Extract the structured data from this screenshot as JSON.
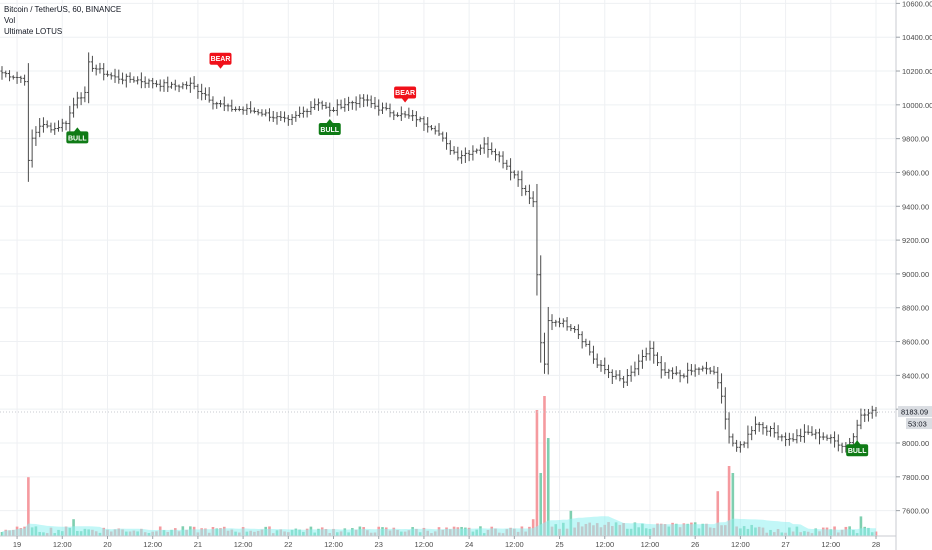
{
  "header": {
    "symbol_line": "Bitcoin / TetherUS, 60, BINANCE",
    "volume_label": "Vol",
    "indicator_label": "Ultimate LOTUS"
  },
  "price_axis": {
    "last_price": "8183.09",
    "countdown": "53:03"
  },
  "colors": {
    "bar": "#4a4a4a",
    "bull": "#0f7b16",
    "bear": "#f0101a",
    "vol_up": "#7fcfb0",
    "vol_down": "#f59a9f",
    "vol_ma": "#8ff0f0",
    "grid": "#eef0f3",
    "axis_text": "#4a4a4a"
  },
  "chart_data": {
    "type": "ohlc",
    "yticks": [
      7600,
      7800,
      8000,
      8200,
      8400,
      8600,
      8800,
      9000,
      9200,
      9400,
      9600,
      9800,
      10000,
      10200,
      10400,
      10600
    ],
    "ylim": [
      7450,
      10620
    ],
    "x_tick_labels": [
      {
        "label": "19",
        "t": 4
      },
      {
        "label": "12:00",
        "t": 16
      },
      {
        "label": "20",
        "t": 28
      },
      {
        "label": "12:00",
        "t": 40
      },
      {
        "label": "21",
        "t": 52
      },
      {
        "label": "12:00",
        "t": 64
      },
      {
        "label": "22",
        "t": 76
      },
      {
        "label": "12:00",
        "t": 88
      },
      {
        "label": "23",
        "t": 100
      },
      {
        "label": "12:00",
        "t": 112
      },
      {
        "label": "24",
        "t": 124
      },
      {
        "label": "12:00",
        "t": 136
      },
      {
        "label": "25",
        "t": 148
      },
      {
        "label": "12:00",
        "t": 160
      },
      {
        "label": "12:00",
        "t": 172
      },
      {
        "label": "26",
        "t": 184
      },
      {
        "label": "12:00",
        "t": 196
      },
      {
        "label": "27",
        "t": 208
      },
      {
        "label": "12:00",
        "t": 220
      },
      {
        "label": "28",
        "t": 232
      }
    ],
    "anchors": [
      [
        0,
        10190
      ],
      [
        3,
        10170
      ],
      [
        6,
        10150
      ],
      [
        7,
        9660
      ],
      [
        8,
        9800
      ],
      [
        10,
        9880
      ],
      [
        14,
        9860
      ],
      [
        17,
        9900
      ],
      [
        20,
        10050
      ],
      [
        22,
        10060
      ],
      [
        23,
        10240
      ],
      [
        26,
        10200
      ],
      [
        30,
        10160
      ],
      [
        35,
        10150
      ],
      [
        40,
        10130
      ],
      [
        45,
        10110
      ],
      [
        50,
        10120
      ],
      [
        54,
        10060
      ],
      [
        56,
        10020
      ],
      [
        60,
        9980
      ],
      [
        64,
        9970
      ],
      [
        68,
        9960
      ],
      [
        72,
        9930
      ],
      [
        76,
        9900
      ],
      [
        80,
        9960
      ],
      [
        84,
        10020
      ],
      [
        87,
        9960
      ],
      [
        90,
        10000
      ],
      [
        96,
        10030
      ],
      [
        100,
        9980
      ],
      [
        103,
        9960
      ],
      [
        106,
        9940
      ],
      [
        110,
        9920
      ],
      [
        115,
        9860
      ],
      [
        118,
        9760
      ],
      [
        121,
        9700
      ],
      [
        124,
        9720
      ],
      [
        128,
        9760
      ],
      [
        131,
        9720
      ],
      [
        134,
        9640
      ],
      [
        137,
        9560
      ],
      [
        139,
        9480
      ],
      [
        141,
        9420
      ],
      [
        143,
        8580
      ],
      [
        144,
        8460
      ],
      [
        145,
        8720
      ],
      [
        148,
        8720
      ],
      [
        152,
        8680
      ],
      [
        155,
        8580
      ],
      [
        158,
        8460
      ],
      [
        161,
        8420
      ],
      [
        165,
        8360
      ],
      [
        168,
        8440
      ],
      [
        172,
        8560
      ],
      [
        175,
        8420
      ],
      [
        180,
        8400
      ],
      [
        185,
        8440
      ],
      [
        189,
        8420
      ],
      [
        191,
        8270
      ],
      [
        193,
        8040
      ],
      [
        195,
        7960
      ],
      [
        197,
        8010
      ],
      [
        200,
        8120
      ],
      [
        205,
        8060
      ],
      [
        209,
        8020
      ],
      [
        214,
        8060
      ],
      [
        218,
        8040
      ],
      [
        222,
        8000
      ],
      [
        224,
        7980
      ],
      [
        226,
        8040
      ],
      [
        228,
        8170
      ],
      [
        230,
        8190
      ],
      [
        232,
        8183
      ]
    ],
    "volume_spikes": [
      {
        "t": 7,
        "v": 0.42,
        "dir": "down"
      },
      {
        "t": 19,
        "v": 0.12,
        "dir": "up"
      },
      {
        "t": 141,
        "v": 0.12,
        "dir": "down"
      },
      {
        "t": 142,
        "v": 0.9,
        "dir": "down"
      },
      {
        "t": 144,
        "v": 1.0,
        "dir": "down"
      },
      {
        "t": 145,
        "v": 0.7,
        "dir": "up"
      },
      {
        "t": 143,
        "v": 0.45,
        "dir": "up"
      },
      {
        "t": 151,
        "v": 0.18,
        "dir": "up"
      },
      {
        "t": 190,
        "v": 0.32,
        "dir": "down"
      },
      {
        "t": 193,
        "v": 0.5,
        "dir": "down"
      },
      {
        "t": 194,
        "v": 0.45,
        "dir": "up"
      },
      {
        "t": 228,
        "v": 0.14,
        "dir": "up"
      }
    ],
    "signals": [
      {
        "label": "BULL",
        "t": 20,
        "price": 9890,
        "kind": "bull"
      },
      {
        "label": "BEAR",
        "t": 58,
        "price": 10190,
        "kind": "bear"
      },
      {
        "label": "BULL",
        "t": 87,
        "price": 9940,
        "kind": "bull"
      },
      {
        "label": "BEAR",
        "t": 107,
        "price": 9990,
        "kind": "bear"
      },
      {
        "label": "BULL",
        "t": 227,
        "price": 8040,
        "kind": "bull"
      }
    ]
  }
}
